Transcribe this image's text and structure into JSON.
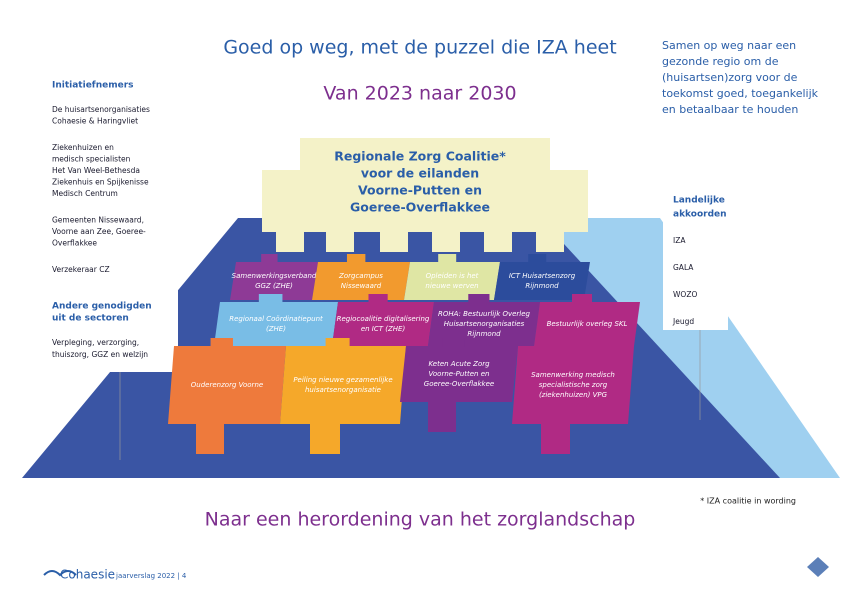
{
  "header": {
    "title": "Goed op weg, met de puzzel die IZA heet",
    "subtitle": "Van 2023 naar 2030",
    "mission": [
      "Samen op weg naar een",
      "gezonde regio om de",
      "(huisartsen)zorg voor de",
      "toekomst goed, toegankelijk",
      "en betaalbaar te houden"
    ]
  },
  "left_panel": {
    "heading": "Initiatiefnemers",
    "items": [
      [
        "De huisartsenorganisaties",
        "Cohaesie & Haringvliet"
      ],
      [
        "Ziekenhuizen en",
        "medisch specialisten",
        "Het Van Weel-Bethesda",
        "Ziekenhuis en Spijkenisse",
        "Medisch Centrum"
      ],
      [
        "Gemeenten Nissewaard,",
        "Voorne aan Zee, Goeree-",
        "Overflakkee"
      ],
      [
        "Verzekeraar CZ"
      ]
    ],
    "heading2": [
      "Andere genodigden",
      "uit de sectoren"
    ],
    "items2": [
      "Verpleging, verzorging,",
      "thuiszorg, GGZ en welzijn"
    ]
  },
  "right_panel": {
    "heading": [
      "Landelijke",
      "akkoorden"
    ],
    "items": [
      "IZA",
      "GALA",
      "WOZO",
      "Jeugd"
    ]
  },
  "top_piece": {
    "label": [
      "Regionale Zorg Coalitie*",
      "voor de eilanden",
      "Voorne-Putten en",
      "Goeree-Overflakkee"
    ],
    "color": "#f4f2c8"
  },
  "pieces": [
    {
      "label": [
        "Samenwerkingsverband",
        "GGZ (ZHE)"
      ],
      "color": "#8e3a96"
    },
    {
      "label": [
        "Zorgcampus",
        "Nissewaard"
      ],
      "color": "#f29a2e"
    },
    {
      "label": [
        "Opleiden is het",
        "nieuwe werven"
      ],
      "color": "#dfe6a4"
    },
    {
      "label": [
        "ICT Huisartsenzorg",
        "Rijnmond"
      ],
      "color": "#2c4c9c"
    },
    {
      "label": [
        "Regionaal Coördinatiepunt",
        "(ZHE)"
      ],
      "color": "#79bde6"
    },
    {
      "label": [
        "Regiocoalitie digitalisering",
        "en ICT (ZHE)"
      ],
      "color": "#b02a84"
    },
    {
      "label": [
        "ROHA: Bestuurlijk Overleg",
        "Huisartsenorganisaties",
        "Rijnmond"
      ],
      "color": "#7d2f8e"
    },
    {
      "label": [
        "Bestuurlijk overleg SKL"
      ],
      "color": "#b02a84"
    },
    {
      "label": [
        "Ouderenzorg Voorne"
      ],
      "color": "#ee7a3c"
    },
    {
      "label": [
        "Peiling nieuwe gezamenlijke",
        "huisartsenorganisatie"
      ],
      "color": "#f5a82a"
    },
    {
      "label": [
        "Keten Acute Zorg",
        "Voorne-Putten en",
        "Goeree-Overflakkee"
      ],
      "color": "#7d2f8e"
    },
    {
      "label": [
        "Samenwerking medisch",
        "specialistische zorg",
        "(ziekenhuizen) VPG"
      ],
      "color": "#b02a84"
    }
  ],
  "footnote": "* IZA coalitie in wording",
  "bottom_title": "Naar een herordening van het zorglandschap",
  "footer": {
    "brand": "Cohaesie",
    "page": "jaarverslag 2022 | 4"
  }
}
